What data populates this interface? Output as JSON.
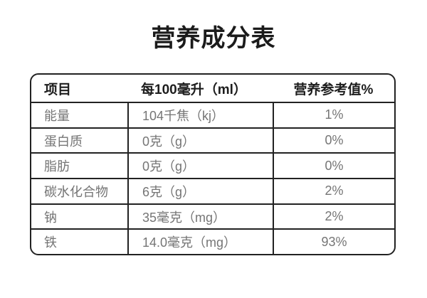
{
  "page": {
    "title": "营养成分表"
  },
  "table": {
    "headers": [
      "项目",
      "每100毫升（ml）",
      "营养参考值%"
    ],
    "rows": [
      {
        "item": "能量",
        "amount": "104千焦（kj）",
        "nrv": "1%"
      },
      {
        "item": "蛋白质",
        "amount": "0克（g）",
        "nrv": "0%"
      },
      {
        "item": "脂肪",
        "amount": "0克（g）",
        "nrv": "0%"
      },
      {
        "item": "碳水化合物",
        "amount": "6克（g）",
        "nrv": "2%"
      },
      {
        "item": "钠",
        "amount": "35毫克（mg）",
        "nrv": "2%"
      },
      {
        "item": "铁",
        "amount": "14.0毫克（mg）",
        "nrv": "93%"
      }
    ]
  },
  "colors": {
    "background": "#ffffff",
    "border": "#222222",
    "header_text": "#1d1d1d",
    "body_text": "#757575",
    "title_text": "#1b1b1b"
  }
}
